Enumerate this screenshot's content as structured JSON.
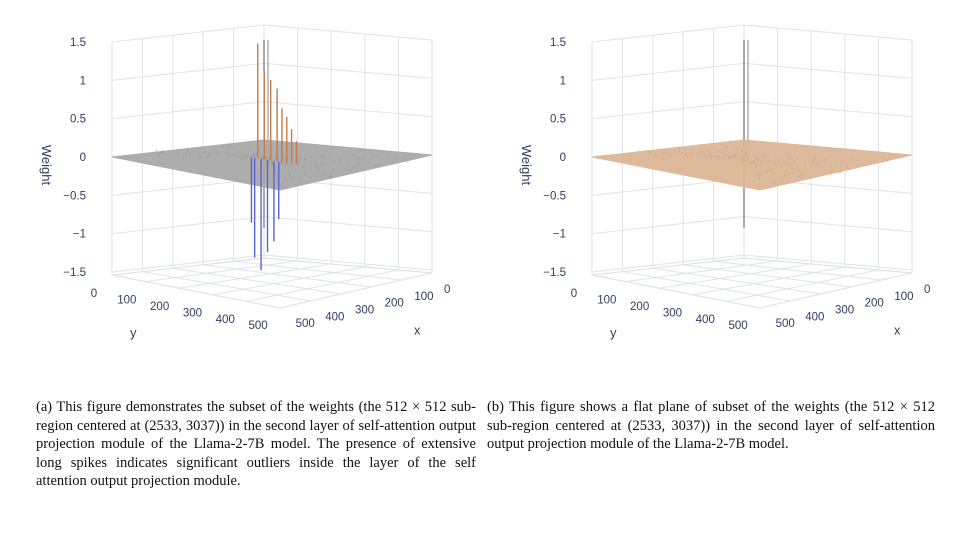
{
  "figures": [
    {
      "id": "a",
      "caption": "(a) This figure demonstrates the subset of the weights (the 512 × 512 sub-region centered at (2533, 3037)) in the second layer of self-attention output projection module of the Llama-2-7B model. The presence of extensive long spikes indicates significant outliers inside the layer of the self attention output projection module."
    },
    {
      "id": "b",
      "caption": "(b) This figure shows a flat plane of subset of the weights (the 512 × 512 sub-region centered at (2533, 3037)) in the second layer of self-attention output projection module of the Llama-2-7B model."
    }
  ],
  "chart_data": [
    {
      "type": "surface3d",
      "zlabel": "Weight",
      "xlabel": "x",
      "ylabel": "y",
      "z_ticks": [
        "1.5",
        "1",
        "0.5",
        "0",
        "−0.5",
        "−1",
        "−1.5"
      ],
      "x_ticks": [
        "0",
        "100",
        "200",
        "300",
        "400",
        "500"
      ],
      "y_ticks": [
        "0",
        "100",
        "200",
        "300",
        "400",
        "500"
      ],
      "zlim": [
        -1.5,
        1.5
      ],
      "xlim": [
        0,
        512
      ],
      "ylim": [
        0,
        512
      ],
      "surface_color": "#a9a9a9",
      "spike_colors": {
        "positive": "#c87b44",
        "negative": "#5b63d6"
      },
      "spikes": [
        {
          "x": 260,
          "y": 300,
          "z": 1.5
        },
        {
          "x": 262,
          "y": 280,
          "z": 1.15
        },
        {
          "x": 262,
          "y": 260,
          "z": 1.05
        },
        {
          "x": 262,
          "y": 240,
          "z": 0.95
        },
        {
          "x": 262,
          "y": 225,
          "z": 0.7
        },
        {
          "x": 262,
          "y": 210,
          "z": 0.6
        },
        {
          "x": 262,
          "y": 195,
          "z": 0.45
        },
        {
          "x": 262,
          "y": 180,
          "z": 0.3
        },
        {
          "x": 262,
          "y": 310,
          "z": -1.3
        },
        {
          "x": 262,
          "y": 290,
          "z": -1.45
        },
        {
          "x": 262,
          "y": 270,
          "z": -1.2
        },
        {
          "x": 262,
          "y": 250,
          "z": -1.05
        },
        {
          "x": 262,
          "y": 320,
          "z": -0.85
        },
        {
          "x": 262,
          "y": 235,
          "z": -0.75
        }
      ]
    },
    {
      "type": "surface3d",
      "zlabel": "Weight",
      "xlabel": "x",
      "ylabel": "y",
      "z_ticks": [
        "1.5",
        "1",
        "0.5",
        "0",
        "−0.5",
        "−1",
        "−1.5"
      ],
      "x_ticks": [
        "0",
        "100",
        "200",
        "300",
        "400",
        "500"
      ],
      "y_ticks": [
        "0",
        "100",
        "200",
        "300",
        "400",
        "500"
      ],
      "zlim": [
        -1.5,
        1.5
      ],
      "xlim": [
        0,
        512
      ],
      "ylim": [
        0,
        512
      ],
      "surface_color": "#dcb797",
      "spikes": []
    }
  ]
}
